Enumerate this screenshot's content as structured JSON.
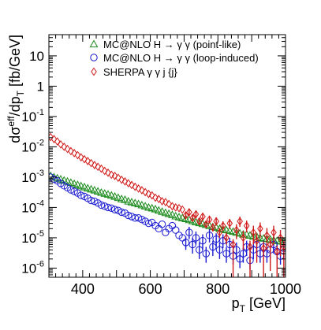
{
  "chart_data": {
    "type": "scatter",
    "xlabel": "p",
    "xlabel_sub": "T",
    "xlabel_unit": "[GeV]",
    "ylabel_prefix": "dσ",
    "ylabel_sup": "eff",
    "ylabel_mid": "/dp",
    "ylabel_sub": "T",
    "ylabel_unit": "[fb/GeV]",
    "xlim": [
      300,
      1000
    ],
    "ylim": [
      5e-07,
      50
    ],
    "ylog": true,
    "grid": false,
    "legend_position": "top-right",
    "x_ticks": [
      400,
      600,
      800,
      1000
    ],
    "y_ticks": [
      {
        "base": "10",
        "exp": "-6",
        "v": 1e-06
      },
      {
        "base": "10",
        "exp": "-5",
        "v": 1e-05
      },
      {
        "base": "10",
        "exp": "-4",
        "v": 0.0001
      },
      {
        "base": "10",
        "exp": "-3",
        "v": 0.001
      },
      {
        "base": "10",
        "exp": "-2",
        "v": 0.01
      },
      {
        "base": "10",
        "exp": "-1",
        "v": 0.1
      },
      {
        "base": "1",
        "exp": "",
        "v": 1
      },
      {
        "base": "10",
        "exp": "",
        "v": 10
      }
    ],
    "series": [
      {
        "name": "MC@NLO H → γ γ  (point-like)",
        "marker": "triangle",
        "color": "#1a8a1a",
        "x": [
          305,
          315,
          325,
          335,
          345,
          355,
          365,
          375,
          385,
          395,
          405,
          415,
          425,
          435,
          445,
          455,
          465,
          475,
          485,
          495,
          505,
          515,
          525,
          535,
          545,
          555,
          565,
          575,
          585,
          595,
          605,
          615,
          625,
          635,
          645,
          655,
          665,
          675,
          685,
          695,
          705,
          715,
          725,
          735,
          745,
          755,
          765,
          775,
          785,
          795,
          805,
          815,
          825,
          835,
          845,
          855,
          865,
          875,
          885,
          895,
          905,
          915,
          925,
          935,
          945,
          955,
          965,
          975,
          985,
          995
        ],
        "y": [
          0.0011,
          0.001,
          0.00092,
          0.00085,
          0.00078,
          0.00072,
          0.00066,
          0.0006,
          0.00056,
          0.00051,
          0.00047,
          0.00043,
          0.0004,
          0.00037,
          0.00034,
          0.00031,
          0.00029,
          0.00027,
          0.00025,
          0.00023,
          0.00021,
          0.00019,
          0.00018,
          0.00016,
          0.00015,
          0.00014,
          0.00013,
          0.00012,
          0.00011,
          0.0001,
          9.5e-05,
          8.8e-05,
          8e-05,
          7.3e-05,
          6.7e-05,
          6.2e-05,
          5.7e-05,
          5.2e-05,
          4.8e-05,
          4.5e-05,
          4.2e-05,
          3.9e-05,
          3.6e-05,
          3.3e-05,
          3.1e-05,
          2.9e-05,
          2.7e-05,
          2.5e-05,
          2.3e-05,
          2.2e-05,
          2e-05,
          1.9e-05,
          1.8e-05,
          1.7e-05,
          1.6e-05,
          1.5e-05,
          1.4e-05,
          1.3e-05,
          1.3e-05,
          1.2e-05,
          1.1e-05,
          1.1e-05,
          1e-05,
          9.6e-06,
          9.2e-06,
          8.8e-06,
          8.4e-06,
          8e-06,
          7.7e-06,
          7.4e-06
        ]
      },
      {
        "name": "MC@NLO H → γ γ (loop-induced)",
        "marker": "circle",
        "color": "#1a1ad0",
        "x": [
          305,
          315,
          325,
          335,
          345,
          355,
          365,
          375,
          385,
          395,
          405,
          415,
          425,
          435,
          445,
          455,
          465,
          475,
          485,
          495,
          505,
          515,
          525,
          535,
          545,
          555,
          565,
          575,
          585,
          595,
          605,
          615,
          625,
          635,
          645,
          655,
          665,
          675,
          685,
          695,
          705,
          715,
          725,
          735,
          745,
          755,
          765,
          775,
          785,
          795,
          805,
          815,
          825,
          835,
          845,
          855,
          865,
          875,
          885,
          895,
          905,
          915,
          925,
          935,
          945,
          955,
          965,
          975,
          985,
          995
        ],
        "y": [
          0.001,
          0.00085,
          0.00075,
          0.00062,
          0.00052,
          0.00045,
          0.00038,
          0.00034,
          0.0003,
          0.00025,
          0.00023,
          0.0002,
          0.00017,
          0.00016,
          0.00014,
          0.00012,
          0.00011,
          0.0001,
          9.5e-05,
          8.5e-05,
          8e-05,
          7e-05,
          6.5e-05,
          5.5e-05,
          5e-05,
          4.5e-05,
          4.5e-05,
          4e-05,
          3.5e-05,
          3e-05,
          3.2e-05,
          2.5e-05,
          2e-05,
          2.8e-05,
          1.5e-05,
          2e-05,
          2.5e-05,
          1.8e-05,
          1.2e-05,
          1e-05,
          7e-06,
          1.5e-05,
          6e-06,
          1e-05,
          4e-06,
          8e-06,
          3e-06,
          1.2e-05,
          5e-06,
          9e-06,
          4e-06,
          8e-06,
          3e-06,
          6e-06,
          2.5e-06,
          4e-06,
          2e-06,
          3e-06,
          5e-06,
          1.8e-06,
          4e-06,
          6e-06,
          3e-06,
          5e-06,
          3e-06,
          4e-06,
          6e-06,
          3.5e-06,
          2.5e-06,
          4.5e-06
        ],
        "yerr_lo": [
          0,
          0,
          0,
          0,
          0,
          0,
          0,
          0,
          0,
          0,
          0,
          0,
          0,
          0,
          0,
          0,
          0,
          0,
          0,
          0,
          0,
          0,
          0,
          0,
          0,
          0,
          0,
          0,
          0,
          0,
          0,
          0,
          0,
          0,
          0,
          0,
          0,
          0,
          0,
          0,
          3e-06,
          6e-06,
          3e-06,
          4e-06,
          2e-06,
          4e-06,
          1.5e-06,
          5e-06,
          2.5e-06,
          4e-06,
          2e-06,
          3.5e-06,
          1.5e-06,
          3e-06,
          1.2e-06,
          2e-06,
          1e-06,
          1.5e-06,
          2.5e-06,
          9e-07,
          2e-06,
          3e-06,
          1.5e-06,
          2.5e-06,
          1.5e-06,
          2e-06,
          3e-06,
          1.8e-06,
          1.2e-06,
          2.2e-06
        ],
        "yerr_hi": [
          0,
          0,
          0,
          0,
          0,
          0,
          0,
          0,
          0,
          0,
          0,
          0,
          0,
          0,
          0,
          0,
          0,
          0,
          0,
          0,
          0,
          0,
          0,
          0,
          0,
          0,
          0,
          0,
          0,
          0,
          0,
          0,
          0,
          0,
          0,
          0,
          0,
          0,
          0,
          0,
          4e-06,
          8e-06,
          4e-06,
          6e-06,
          3e-06,
          5e-06,
          2e-06,
          7e-06,
          3e-06,
          5e-06,
          3e-06,
          5e-06,
          2e-06,
          4e-06,
          1.5e-06,
          3e-06,
          1.2e-06,
          2e-06,
          3e-06,
          1.2e-06,
          3e-06,
          4e-06,
          2e-06,
          3e-06,
          2e-06,
          3e-06,
          4e-06,
          2.5e-06,
          1.5e-06,
          3e-06
        ]
      },
      {
        "name": "SHERPA γ γ j {j}",
        "marker": "diamond",
        "color": "#d01a1a",
        "x": [
          305,
          315,
          325,
          335,
          345,
          355,
          365,
          375,
          385,
          395,
          405,
          415,
          425,
          435,
          445,
          455,
          465,
          475,
          485,
          495,
          505,
          515,
          525,
          535,
          545,
          555,
          565,
          575,
          585,
          595,
          605,
          615,
          625,
          635,
          645,
          655,
          665,
          675,
          685,
          695,
          705,
          715,
          725,
          735,
          745,
          755,
          765,
          775,
          785,
          795,
          805,
          815,
          825,
          835,
          845,
          855,
          865,
          875,
          885,
          895,
          905,
          915,
          925,
          935,
          945,
          955,
          965,
          975,
          985,
          995
        ],
        "y": [
          0.021,
          0.018,
          0.015,
          0.012,
          0.01,
          0.0085,
          0.0072,
          0.0062,
          0.0053,
          0.0045,
          0.0039,
          0.0034,
          0.0029,
          0.0025,
          0.0022,
          0.0019,
          0.0016,
          0.0014,
          0.0012,
          0.0011,
          0.00095,
          0.00082,
          0.00072,
          0.00063,
          0.00055,
          0.00048,
          0.00042,
          0.00037,
          0.00032,
          0.00028,
          0.00025,
          0.00021,
          0.00019,
          0.00016,
          0.00015,
          0.00013,
          0.00011,
          0.0001,
          9.5e-05,
          8.5e-05,
          5.5e-05,
          7e-05,
          4.5e-05,
          6e-05,
          3.5e-05,
          5e-05,
          2.8e-05,
          4e-05,
          2.2e-05,
          3.5e-05,
          1.5e-05,
          2.5e-05,
          1e-05,
          3e-05,
          6e-06,
          1.8e-05,
          3.5e-05,
          1e-05,
          2.5e-05,
          5e-06,
          1.5e-05,
          8e-06,
          2e-05,
          4.5e-06,
          1.2e-05,
          6e-06,
          1.5e-05,
          3.5e-06,
          1e-05,
          5e-06
        ],
        "yerr_lo": [
          0,
          0,
          0,
          0,
          0,
          0,
          0,
          0,
          0,
          0,
          0,
          0,
          0,
          0,
          0,
          0,
          0,
          0,
          0,
          0,
          0,
          0,
          0,
          0,
          0,
          0,
          0,
          0,
          0,
          0,
          0,
          0,
          0,
          0,
          0,
          0,
          0,
          0,
          0,
          0,
          1e-05,
          1.5e-05,
          1e-05,
          1.5e-05,
          8e-06,
          1.2e-05,
          7e-06,
          1e-05,
          6e-06,
          1e-05,
          5e-06,
          8e-06,
          4e-06,
          1e-05,
          5.5e-06,
          9e-06,
          1.2e-05,
          6e-06,
          1e-05,
          4.5e-06,
          9e-06,
          6.5e-06,
          1e-05,
          4e-06,
          8e-06,
          5.2e-06,
          9e-06,
          3e-06,
          7.5e-06,
          4.5e-06
        ],
        "yerr_hi": [
          0,
          0,
          0,
          0,
          0,
          0,
          0,
          0,
          0,
          0,
          0,
          0,
          0,
          0,
          0,
          0,
          0,
          0,
          0,
          0,
          0,
          0,
          0,
          0,
          0,
          0,
          0,
          0,
          0,
          0,
          0,
          0,
          0,
          0,
          0,
          0,
          0,
          0,
          0,
          0,
          1.2e-05,
          1.8e-05,
          1.2e-05,
          1.8e-05,
          1e-05,
          1.5e-05,
          8e-06,
          1.2e-05,
          7e-06,
          1.2e-05,
          6e-06,
          1e-05,
          5e-06,
          1.2e-05,
          3e-06,
          1e-05,
          1.5e-05,
          7e-06,
          1.2e-05,
          3e-06,
          1e-05,
          6e-06,
          1.2e-05,
          3e-06,
          9e-06,
          4e-06,
          1e-05,
          2e-06,
          8e-06,
          3e-06
        ]
      }
    ]
  }
}
